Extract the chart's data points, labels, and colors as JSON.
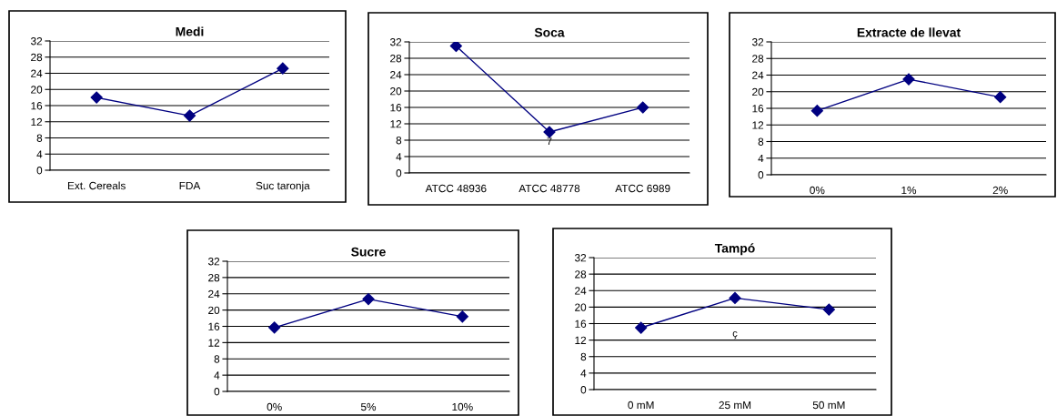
{
  "chart_data": [
    {
      "type": "line",
      "title": "Medi",
      "categories": [
        "Ext. Cereals",
        "FDA",
        "Suc taronja"
      ],
      "series": [
        {
          "color": "#000080",
          "values": [
            18,
            13.5,
            25.2
          ]
        }
      ],
      "ylim": [
        0,
        32
      ],
      "yticks": [
        0,
        4,
        8,
        12,
        16,
        20,
        24,
        28,
        32
      ],
      "grid": "y",
      "marker": "diamond",
      "line_style": "solid",
      "legend": false
    },
    {
      "type": "line",
      "title": "Soca",
      "categories": [
        "ATCC 48936",
        "ATCC 48778",
        "ATCC 6989"
      ],
      "series": [
        {
          "color": "#000080",
          "values": [
            31,
            10,
            16
          ]
        }
      ],
      "ylim": [
        0,
        32
      ],
      "yticks": [
        0,
        4,
        8,
        12,
        16,
        20,
        24,
        28,
        32
      ],
      "grid": "y",
      "marker": "diamond",
      "line_style": "solid",
      "legend": false,
      "annotations": [
        "7"
      ]
    },
    {
      "type": "line",
      "title": "Extracte de llevat",
      "categories": [
        "0%",
        "1%",
        "2%"
      ],
      "series": [
        {
          "color": "#000080",
          "values": [
            15.4,
            23,
            18.7
          ]
        }
      ],
      "ylim": [
        0,
        32
      ],
      "yticks": [
        0,
        4,
        8,
        12,
        16,
        20,
        24,
        28,
        32
      ],
      "grid": "y",
      "marker": "diamond",
      "line_style": "solid",
      "legend": false
    },
    {
      "type": "line",
      "title": "Sucre",
      "categories": [
        "0%",
        "5%",
        "10%"
      ],
      "series": [
        {
          "color": "#000080",
          "values": [
            15.7,
            22.7,
            18.4
          ]
        }
      ],
      "ylim": [
        0,
        32
      ],
      "yticks": [
        0,
        4,
        8,
        12,
        16,
        20,
        24,
        28,
        32
      ],
      "grid": "y",
      "marker": "diamond",
      "line_style": "solid",
      "legend": false
    },
    {
      "type": "line",
      "title": "Tampó",
      "categories": [
        "0 mM",
        "25 mM",
        "50 mM"
      ],
      "series": [
        {
          "color": "#000080",
          "values": [
            15,
            22.2,
            19.4
          ]
        }
      ],
      "ylim": [
        0,
        32
      ],
      "yticks": [
        0,
        4,
        8,
        12,
        16,
        20,
        24,
        28,
        32
      ],
      "grid": "y",
      "marker": "diamond",
      "line_style": "solid",
      "legend": false,
      "annotations": [
        "ç"
      ]
    }
  ]
}
